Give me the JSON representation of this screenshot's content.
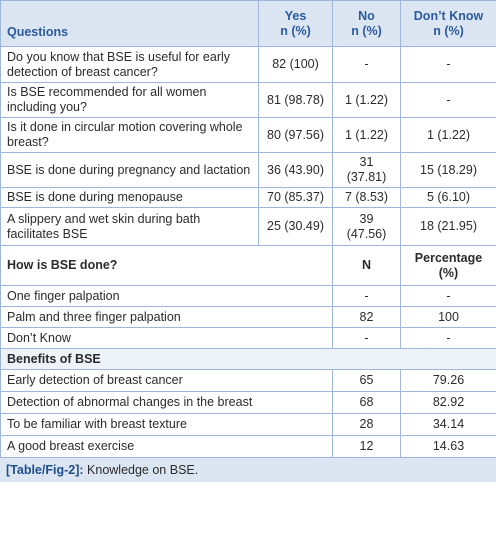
{
  "header": {
    "columns": [
      [
        "Questions"
      ],
      [
        "Yes",
        "n (%)"
      ],
      [
        "No",
        "n (%)"
      ],
      [
        "Don’t Know",
        "n (%)"
      ]
    ]
  },
  "questions": [
    [
      "Do you know that BSE is useful for early detection of breast cancer?",
      "82 (100)",
      "-",
      "-"
    ],
    [
      "Is BSE recommended for all women including you?",
      "81 (98.78)",
      "1 (1.22)",
      "-"
    ],
    [
      "Is it done in circular motion covering whole breast?",
      "80 (97.56)",
      "1 (1.22)",
      "1 (1.22)"
    ],
    [
      "BSE is done during pregnancy and lactation",
      "36 (43.90)",
      "31 (37.81)",
      "15 (18.29)"
    ],
    [
      "BSE is done during menopause",
      "70 (85.37)",
      "7 (8.53)",
      "5 (6.10)"
    ],
    [
      "A slippery and wet skin during bath facilitates BSE",
      "25 (30.49)",
      "39 (47.56)",
      "18 (21.95)"
    ]
  ],
  "how": {
    "header": [
      [
        "How is BSE done?"
      ],
      [
        "N"
      ],
      [
        "Percentage",
        "(%)"
      ]
    ],
    "rows": [
      [
        "One finger palpation",
        "-",
        "-"
      ],
      [
        "Palm and three finger palpation",
        "82",
        "100"
      ],
      [
        "Don’t Know",
        "-",
        "-"
      ]
    ]
  },
  "benefits": {
    "title": "Benefits of BSE",
    "rows": [
      [
        "Early detection of breast cancer",
        "65",
        "79.26"
      ],
      [
        "Detection of abnormal changes in the breast",
        "68",
        "82.92"
      ],
      [
        "To be familiar with breast texture",
        "28",
        "34.14"
      ],
      [
        "A good breast exercise",
        "12",
        "14.63"
      ]
    ]
  },
  "caption": {
    "label": "[Table/Fig-2]:",
    "text": "Knowledge on BSE."
  }
}
